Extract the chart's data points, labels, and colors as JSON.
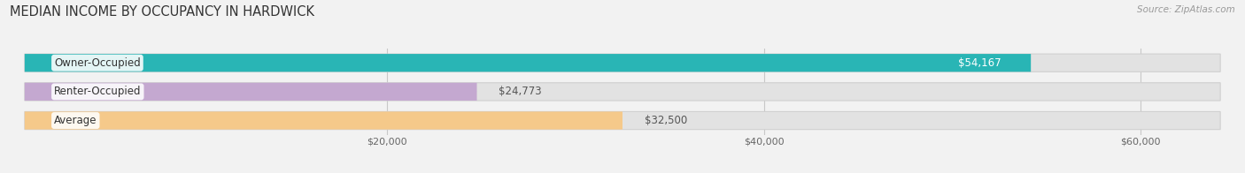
{
  "title": "MEDIAN INCOME BY OCCUPANCY IN HARDWICK",
  "source": "Source: ZipAtlas.com",
  "categories": [
    "Owner-Occupied",
    "Renter-Occupied",
    "Average"
  ],
  "values": [
    54167,
    24773,
    32500
  ],
  "labels": [
    "$54,167",
    "$24,773",
    "$32,500"
  ],
  "bar_colors": [
    "#29b5b5",
    "#c4a8d0",
    "#f5c98a"
  ],
  "background_color": "#f2f2f2",
  "bar_bg_color": "#e2e2e2",
  "xlim_max": 65000,
  "xticks": [
    20000,
    40000,
    60000
  ],
  "xticklabels": [
    "$20,000",
    "$40,000",
    "$60,000"
  ],
  "title_fontsize": 10.5,
  "source_fontsize": 7.5,
  "label_fontsize": 8.5,
  "cat_fontsize": 8.5,
  "bar_height": 0.62
}
